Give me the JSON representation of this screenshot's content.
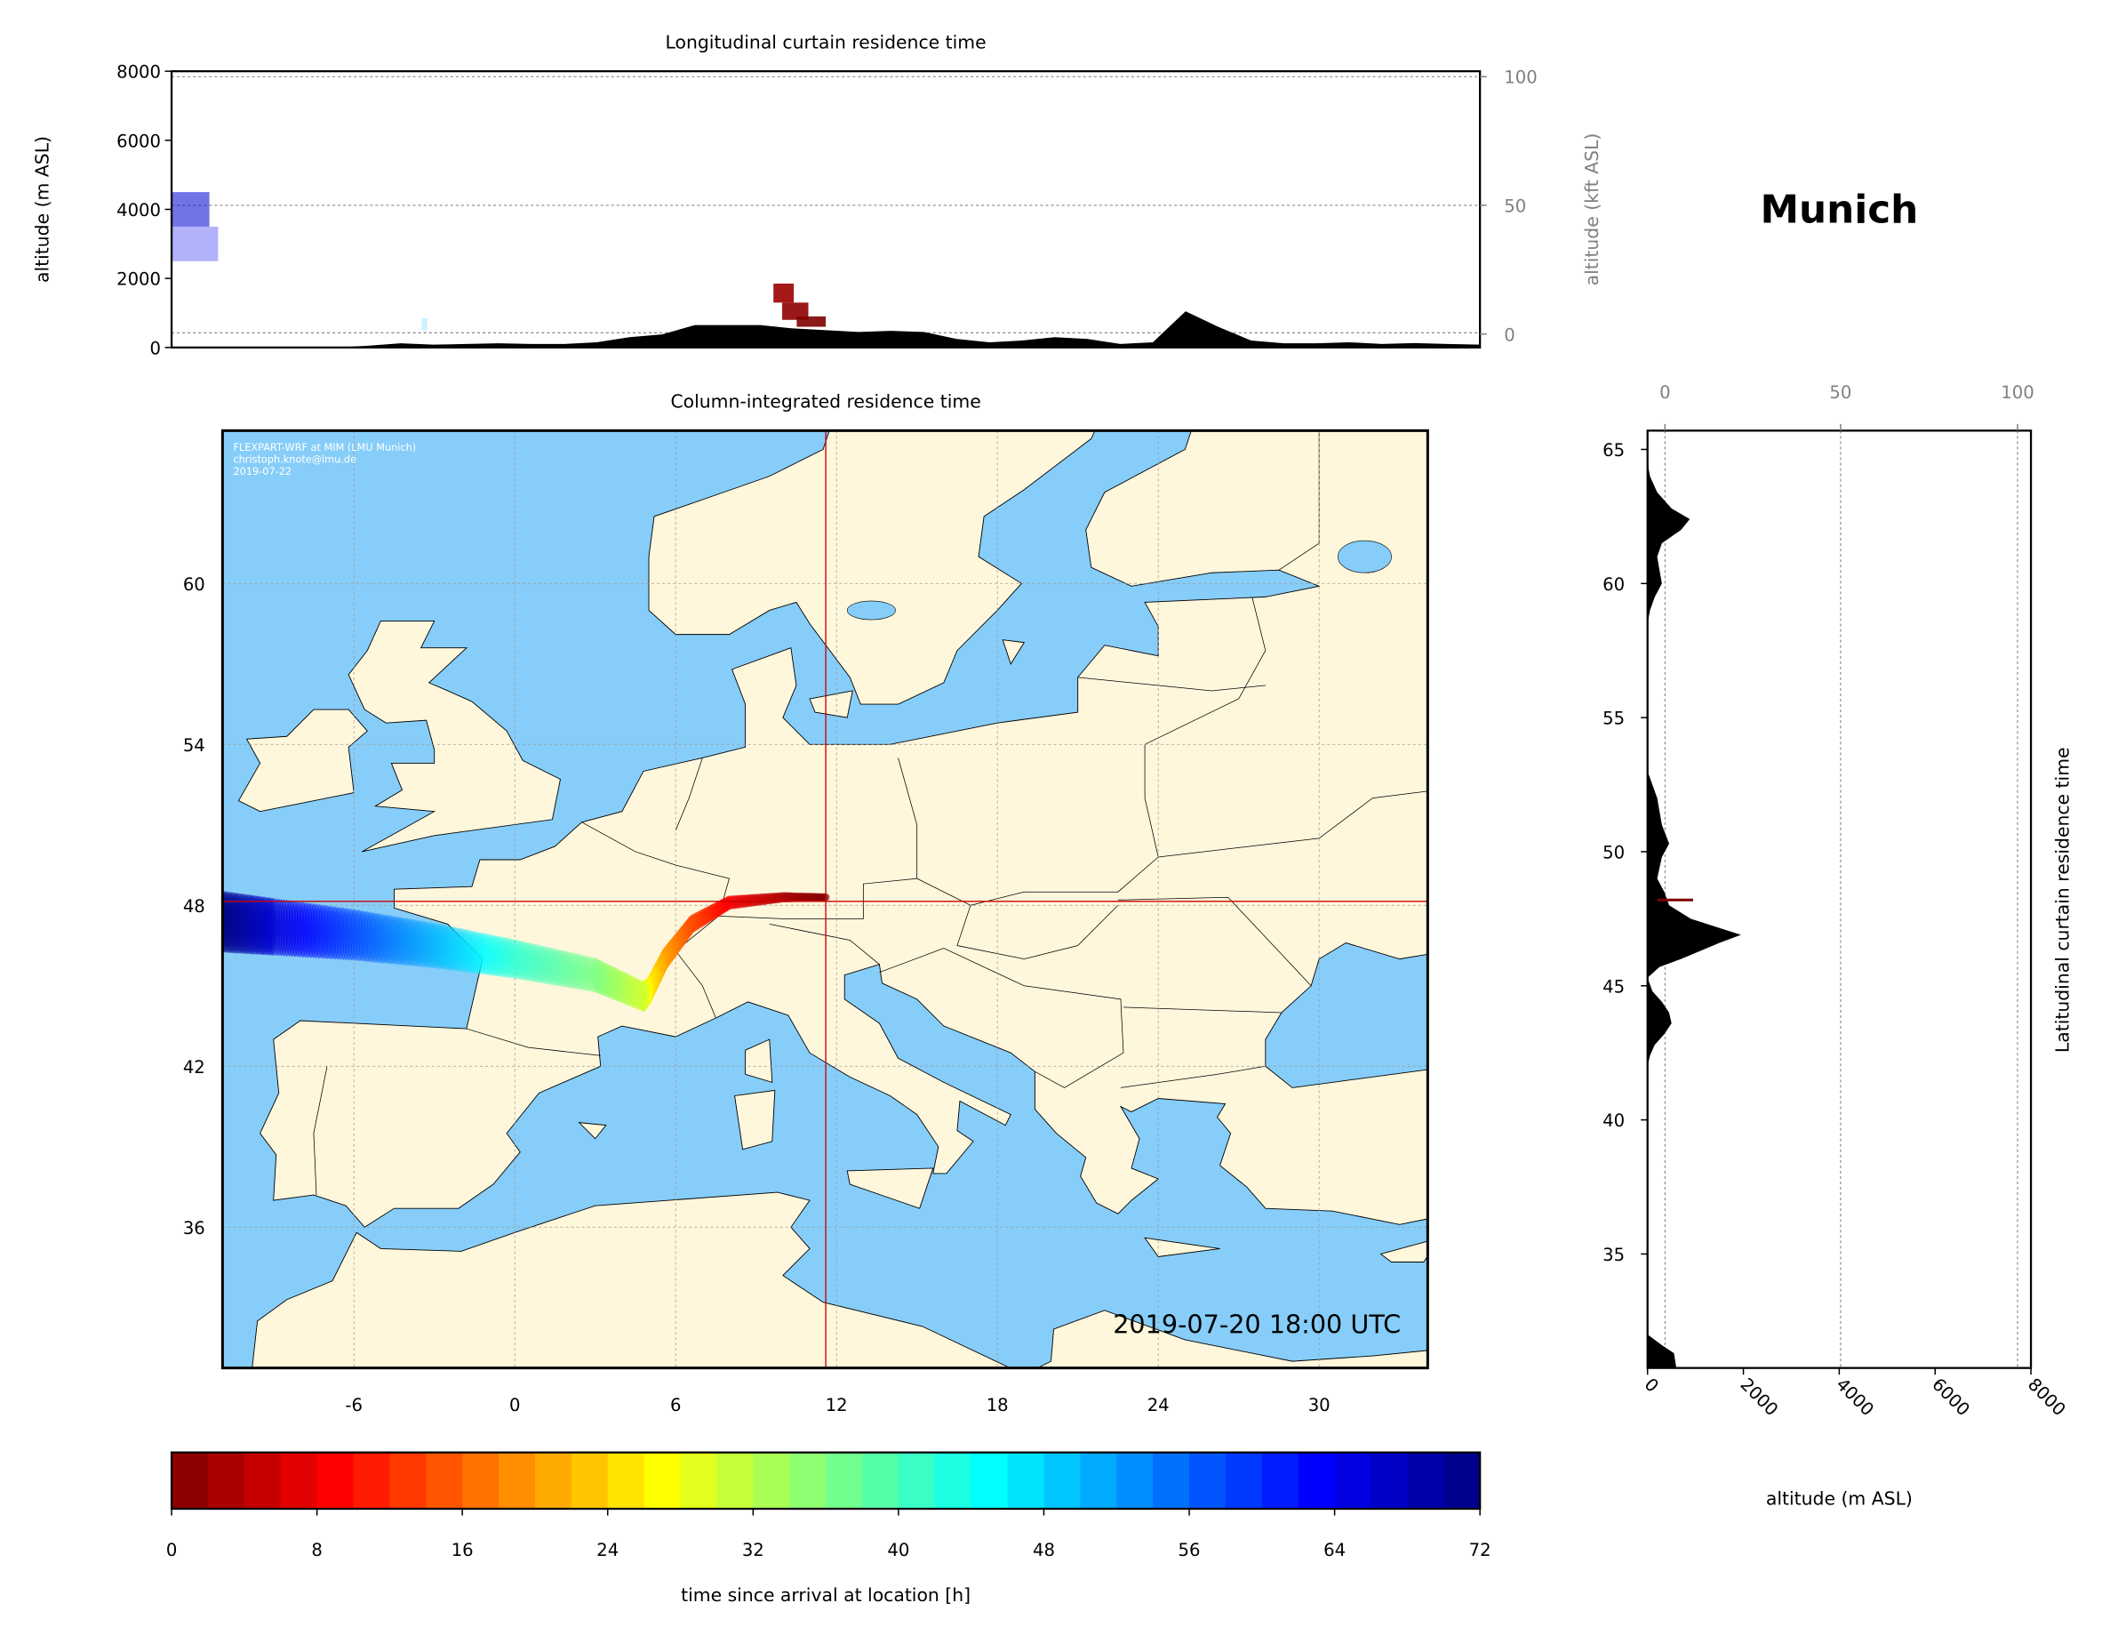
{
  "location_title": "Munich",
  "watermark": [
    "FLEXPART-WRF at MIM (LMU Munich)",
    "christoph.knote@lmu.de",
    "2019-07-22"
  ],
  "timestamp": "2019-07-20 18:00 UTC",
  "colors": {
    "land": "#fff7dc",
    "ocean": "#87cdf9",
    "marker": "#cc0000",
    "terrain": "#000000",
    "secondary_axis": "#808080"
  },
  "chart_data": [
    {
      "type": "heatmap",
      "title": "Longitudinal curtain residence time",
      "ylabel": "altitude (m ASL)",
      "ylabel_right": "altitude (kft ASL)",
      "ylim": [
        0,
        8000
      ],
      "yticks": [
        "0",
        "2000",
        "4000",
        "6000",
        "8000"
      ],
      "yticks_right": [
        "0",
        "50",
        "100"
      ],
      "grid": true,
      "terrain_lon_start": -10.9,
      "terrain_lon_step": 1.125,
      "terrain_altitude_m": [
        0,
        0,
        0,
        0,
        0,
        0,
        50,
        120,
        80,
        100,
        120,
        100,
        100,
        150,
        300,
        380,
        650,
        650,
        650,
        550,
        500,
        450,
        480,
        450,
        250,
        150,
        200,
        300,
        250,
        100,
        150,
        1050,
        600,
        200,
        120,
        120,
        150,
        100,
        130,
        100,
        80
      ],
      "cells": [
        {
          "lon": [
            -10.9,
            -9.6
          ],
          "alt": [
            3500,
            4500
          ],
          "hours": 66,
          "opacity": 0.55
        },
        {
          "lon": [
            -10.9,
            -9.3
          ],
          "alt": [
            2500,
            3500
          ],
          "hours": 64,
          "opacity": 0.3
        },
        {
          "lon": [
            -2.3,
            -2.1
          ],
          "alt": [
            500,
            850
          ],
          "hours": 50,
          "opacity": 0.2
        },
        {
          "lon": [
            9.8,
            10.5
          ],
          "alt": [
            1300,
            1850
          ],
          "hours": 2,
          "opacity": 0.9
        },
        {
          "lon": [
            10.1,
            11.0
          ],
          "alt": [
            800,
            1300
          ],
          "hours": 1,
          "opacity": 0.9
        },
        {
          "lon": [
            10.6,
            11.6
          ],
          "alt": [
            600,
            900
          ],
          "hours": 0,
          "opacity": 0.9
        }
      ]
    },
    {
      "type": "heatmap",
      "title": "Column-integrated residence time",
      "xticks": [
        "-6",
        "0",
        "6",
        "12",
        "18",
        "24",
        "30"
      ],
      "yticks": [
        "36",
        "42",
        "48",
        "54",
        "60"
      ],
      "xlim": [
        -10.9,
        34.05
      ],
      "ylim": [
        30.75,
        65.7
      ],
      "grid": true,
      "release_location": {
        "lon": 11.6,
        "lat": 48.15
      },
      "trajectory": [
        {
          "lon": 11.6,
          "lat": 48.3,
          "hours": 0
        },
        {
          "lon": 10.0,
          "lat": 48.3,
          "hours": 3
        },
        {
          "lon": 8.0,
          "lat": 48.1,
          "hours": 8
        },
        {
          "lon": 6.6,
          "lat": 47.3,
          "hours": 14
        },
        {
          "lon": 5.6,
          "lat": 46.0,
          "hours": 20
        },
        {
          "lon": 5.0,
          "lat": 44.8,
          "hours": 26
        },
        {
          "lon": 4.8,
          "lat": 44.6,
          "hours": 30
        },
        {
          "lon": 3.0,
          "lat": 45.4,
          "hours": 36
        },
        {
          "lon": 0.0,
          "lat": 46.0,
          "hours": 42
        },
        {
          "lon": -3.0,
          "lat": 46.5,
          "hours": 50
        },
        {
          "lon": -6.0,
          "lat": 46.9,
          "hours": 58
        },
        {
          "lon": -9.0,
          "lat": 47.2,
          "hours": 66
        },
        {
          "lon": -11.0,
          "lat": 47.4,
          "hours": 72
        }
      ]
    },
    {
      "type": "heatmap",
      "title": "Latitudinal curtain residence time",
      "xlabel": "altitude (m ASL)",
      "xlim": [
        0,
        8000
      ],
      "xticks": [
        "0",
        "2000",
        "4000",
        "6000",
        "8000"
      ],
      "xticks_top": [
        "0",
        "50",
        "100"
      ],
      "yticks": [
        "35",
        "40",
        "45",
        "50",
        "55",
        "60",
        "65"
      ],
      "grid": true,
      "terrain": [
        [
          65.7,
          0
        ],
        [
          64.5,
          0
        ],
        [
          64,
          50
        ],
        [
          63.4,
          200
        ],
        [
          62.8,
          500
        ],
        [
          62.4,
          880
        ],
        [
          62,
          700
        ],
        [
          61.5,
          300
        ],
        [
          61,
          200
        ],
        [
          60.5,
          250
        ],
        [
          60,
          300
        ],
        [
          59.5,
          150
        ],
        [
          59,
          50
        ],
        [
          58.5,
          0
        ],
        [
          53,
          0
        ],
        [
          52.5,
          100
        ],
        [
          52,
          200
        ],
        [
          51,
          300
        ],
        [
          50.3,
          450
        ],
        [
          49.8,
          300
        ],
        [
          49,
          200
        ],
        [
          48.5,
          350
        ],
        [
          48,
          450
        ],
        [
          47.5,
          900
        ],
        [
          47.1,
          1600
        ],
        [
          46.9,
          1950
        ],
        [
          46.6,
          1500
        ],
        [
          46.3,
          1100
        ],
        [
          46,
          700
        ],
        [
          45.7,
          250
        ],
        [
          45.3,
          0
        ],
        [
          44.8,
          100
        ],
        [
          44.4,
          300
        ],
        [
          44,
          450
        ],
        [
          43.6,
          500
        ],
        [
          43.2,
          350
        ],
        [
          42.8,
          150
        ],
        [
          42.4,
          50
        ],
        [
          42,
          0
        ],
        [
          32,
          0
        ],
        [
          31.6,
          300
        ],
        [
          31.3,
          550
        ],
        [
          30.75,
          600
        ]
      ],
      "cells": [
        {
          "lat": 48.2,
          "alt": [
            200,
            950
          ],
          "hours": 0
        }
      ]
    },
    {
      "type": "colorbar",
      "xlabel": "time since arrival at location [h]",
      "xlim": [
        0,
        72
      ],
      "ticks": [
        "0",
        "8",
        "16",
        "24",
        "32",
        "40",
        "48",
        "56",
        "64",
        "72"
      ],
      "colormap": "jet_r"
    }
  ]
}
